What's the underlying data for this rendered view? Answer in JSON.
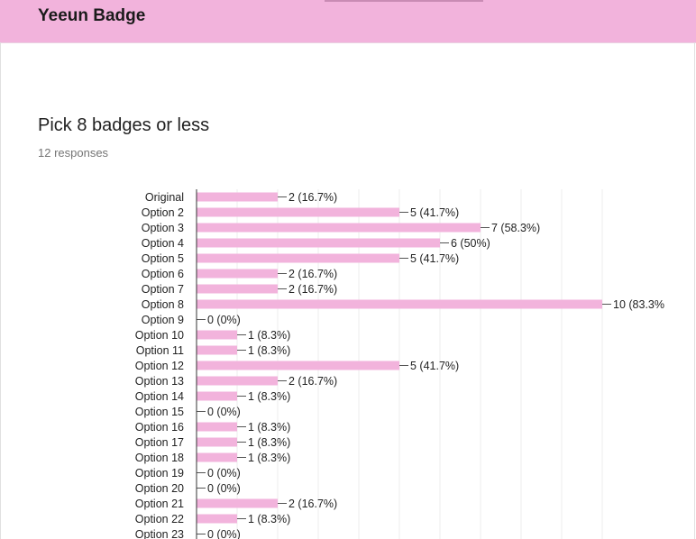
{
  "app": {
    "title": "Yeeun Badge"
  },
  "question": {
    "title": "Pick 8 badges or less",
    "responses": "12 responses"
  },
  "colors": {
    "header": "#f2b3dc",
    "bar": "#f2b3dc",
    "grid": "#eeeeee",
    "axis": "#333333"
  },
  "chart_data": {
    "type": "bar",
    "orientation": "horizontal",
    "xlim": [
      0,
      10
    ],
    "grid": true,
    "categories": [
      "Original",
      "Option 2",
      "Option 3",
      "Option 4",
      "Option 5",
      "Option 6",
      "Option 7",
      "Option 8",
      "Option 9",
      "Option 10",
      "Option 11",
      "Option 12",
      "Option 13",
      "Option 14",
      "Option 15",
      "Option 16",
      "Option 17",
      "Option 18",
      "Option 19",
      "Option 20",
      "Option 21",
      "Option 22",
      "Option 23"
    ],
    "values": [
      2,
      5,
      7,
      6,
      5,
      2,
      2,
      10,
      0,
      1,
      1,
      5,
      2,
      1,
      0,
      1,
      1,
      1,
      0,
      0,
      2,
      1,
      0
    ],
    "labels": [
      "2 (16.7%)",
      "5 (41.7%)",
      "7 (58.3%)",
      "6 (50%)",
      "5 (41.7%)",
      "2 (16.7%)",
      "2 (16.7%)",
      "10 (83.3%",
      "0 (0%)",
      "1 (8.3%)",
      "1 (8.3%)",
      "5 (41.7%)",
      "2 (16.7%)",
      "1 (8.3%)",
      "0 (0%)",
      "1 (8.3%)",
      "1 (8.3%)",
      "1 (8.3%)",
      "0 (0%)",
      "0 (0%)",
      "2 (16.7%)",
      "1 (8.3%)",
      "0 (0%)"
    ]
  }
}
